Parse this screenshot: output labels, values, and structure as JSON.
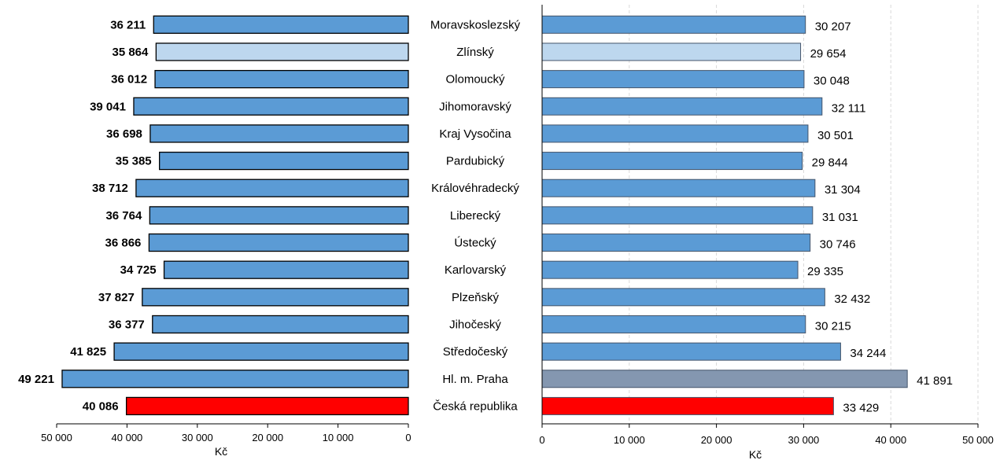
{
  "chart_data": [
    {
      "type": "bar",
      "orientation": "horizontal",
      "axis_direction": "reversed",
      "categories": [
        "Moravskoslezský",
        "Zlínský",
        "Olomoucký",
        "Jihomoravský",
        "Kraj Vysočina",
        "Pardubický",
        "Královéhradecký",
        "Liberecký",
        "Ústecký",
        "Karlovarský",
        "Plzeňský",
        "Jihočeský",
        "Středočeský",
        "Hl. m. Praha",
        "Česká republika"
      ],
      "values": [
        36211,
        35864,
        36012,
        39041,
        36698,
        35385,
        38712,
        36764,
        36866,
        34725,
        37827,
        36377,
        41825,
        49221,
        40086
      ],
      "value_labels": [
        "36 211",
        "35 864",
        "36 012",
        "39 041",
        "36 698",
        "35 385",
        "38 712",
        "36 764",
        "36 866",
        "34 725",
        "37 827",
        "36 377",
        "41 825",
        "49 221",
        "40 086"
      ],
      "bar_colors": [
        "#5b9bd5",
        "#bdd7ee",
        "#5b9bd5",
        "#5b9bd5",
        "#5b9bd5",
        "#5b9bd5",
        "#5b9bd5",
        "#5b9bd5",
        "#5b9bd5",
        "#5b9bd5",
        "#5b9bd5",
        "#5b9bd5",
        "#5b9bd5",
        "#5b9bd5",
        "#ff0000"
      ],
      "bar_outline": "#000000",
      "xlim": [
        0,
        50000
      ],
      "xticks": [
        50000,
        40000,
        30000,
        20000,
        10000,
        0
      ],
      "xtick_labels": [
        "50 000",
        "40 000",
        "30 000",
        "20 000",
        "10 000",
        "0"
      ],
      "xlabel": "Kč",
      "grid": false
    },
    {
      "type": "bar",
      "orientation": "horizontal",
      "categories": [
        "Moravskoslezský",
        "Zlínský",
        "Olomoucký",
        "Jihomoravský",
        "Kraj Vysočina",
        "Pardubický",
        "Královéhradecký",
        "Liberecký",
        "Ústecký",
        "Karlovarský",
        "Plzeňský",
        "Jihočeský",
        "Středočeský",
        "Hl. m. Praha",
        "Česká republika"
      ],
      "values": [
        30207,
        29654,
        30048,
        32111,
        30501,
        29844,
        31304,
        31031,
        30746,
        29335,
        32432,
        30215,
        34244,
        41891,
        33429
      ],
      "value_labels": [
        "30 207",
        "29 654",
        "30 048",
        "32 111",
        "30 501",
        "29 844",
        "31 304",
        "31 031",
        "30 746",
        "29 335",
        "32 432",
        "30 215",
        "34 244",
        "41 891",
        "33 429"
      ],
      "bar_colors": [
        "#5b9bd5",
        "#bdd7ee",
        "#5b9bd5",
        "#5b9bd5",
        "#5b9bd5",
        "#5b9bd5",
        "#5b9bd5",
        "#5b9bd5",
        "#5b9bd5",
        "#5b9bd5",
        "#5b9bd5",
        "#5b9bd5",
        "#5b9bd5",
        "#8497b0",
        "#ff0000"
      ],
      "bar_outline": "#44546a",
      "xlim": [
        0,
        50000
      ],
      "xticks": [
        0,
        10000,
        20000,
        30000,
        40000,
        50000
      ],
      "xtick_labels": [
        "0",
        "10 000",
        "20 000",
        "30 000",
        "40 000",
        "50 000"
      ],
      "xlabel": "Kč",
      "grid": true,
      "grid_color": "#d9d9d9"
    }
  ]
}
